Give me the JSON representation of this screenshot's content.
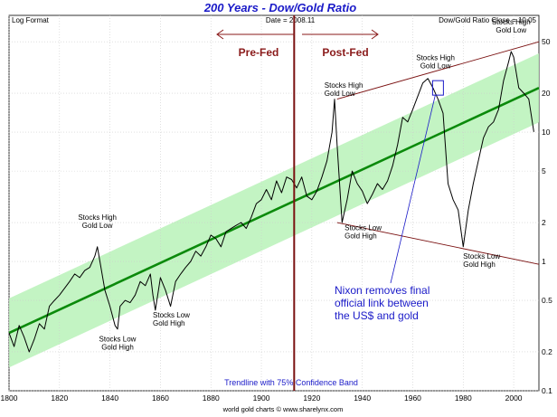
{
  "chart_data": {
    "type": "line",
    "title": "200 Years - Dow/Gold Ratio",
    "subtitle_left": "Log Format",
    "date_label": "Date = 2008.11",
    "close_label": "Dow/Gold Ratio Close = 10.05",
    "y_scale": "log",
    "xlim": [
      1800,
      2010
    ],
    "ylim": [
      0.1,
      80
    ],
    "x_ticks": [
      "1800",
      "1820",
      "1840",
      "1860",
      "1880",
      "1900",
      "1920",
      "1940",
      "1960",
      "1980",
      "2000"
    ],
    "x_tick_values": [
      1800,
      1820,
      1840,
      1860,
      1880,
      1900,
      1920,
      1940,
      1960,
      1980,
      2000
    ],
    "y_ticks": [
      "50",
      "20",
      "10",
      "5",
      "2",
      "1",
      "0.5",
      "0.2",
      "0.1"
    ],
    "y_tick_values": [
      50,
      20,
      10,
      5,
      2,
      1,
      0.5,
      0.2,
      0.1
    ],
    "grid": true,
    "series": [
      {
        "x": [
          1800,
          1802,
          1804,
          1806,
          1808,
          1810,
          1812,
          1814,
          1816,
          1818,
          1820,
          1822,
          1824,
          1826,
          1828,
          1830,
          1832,
          1834,
          1835,
          1836,
          1838,
          1840,
          1842,
          1843,
          1844,
          1846,
          1848,
          1850,
          1852,
          1854,
          1856,
          1857,
          1858,
          1860,
          1862,
          1864,
          1866,
          1868,
          1870,
          1872,
          1874,
          1876,
          1878,
          1880,
          1882,
          1884,
          1886,
          1888,
          1890,
          1892,
          1894,
          1896,
          1898,
          1900,
          1902,
          1904,
          1906,
          1908,
          1910,
          1912,
          1914,
          1916,
          1918,
          1920,
          1922,
          1924,
          1926,
          1928,
          1929,
          1930,
          1932,
          1934,
          1936,
          1938,
          1940,
          1942,
          1944,
          1946,
          1948,
          1950,
          1952,
          1954,
          1956,
          1958,
          1960,
          1962,
          1964,
          1966,
          1968,
          1970,
          1972,
          1974,
          1976,
          1978,
          1980,
          1982,
          1984,
          1986,
          1988,
          1990,
          1992,
          1994,
          1996,
          1998,
          1999,
          2000,
          2002,
          2004,
          2006,
          2008
        ],
        "y": [
          0.28,
          0.22,
          0.32,
          0.26,
          0.2,
          0.25,
          0.33,
          0.3,
          0.45,
          0.5,
          0.55,
          0.62,
          0.7,
          0.8,
          0.75,
          0.85,
          0.9,
          1.1,
          1.3,
          1.0,
          0.6,
          0.45,
          0.32,
          0.3,
          0.45,
          0.5,
          0.48,
          0.55,
          0.7,
          0.65,
          0.8,
          0.55,
          0.42,
          0.75,
          0.6,
          0.45,
          0.7,
          0.8,
          0.9,
          1.0,
          1.2,
          1.1,
          1.3,
          1.6,
          1.5,
          1.3,
          1.7,
          1.8,
          1.9,
          2.0,
          1.8,
          2.2,
          2.8,
          3.0,
          3.6,
          3.0,
          4.2,
          3.4,
          4.5,
          4.3,
          3.7,
          4.5,
          3.2,
          3.0,
          3.5,
          4.5,
          6.0,
          10.0,
          18.0,
          8.0,
          2.0,
          3.0,
          5.0,
          4.0,
          3.5,
          2.8,
          3.3,
          4.0,
          3.6,
          4.2,
          5.5,
          8.0,
          13.0,
          12.0,
          15.0,
          19.0,
          24.0,
          26.0,
          22.0,
          18.0,
          14.0,
          4.0,
          3.0,
          2.5,
          1.3,
          2.5,
          4.0,
          6.0,
          9.0,
          11.0,
          12.0,
          15.0,
          25.0,
          35.0,
          42.0,
          38.0,
          22.0,
          20.0,
          18.0,
          10.05
        ]
      }
    ],
    "trendline": {
      "label": "Trendline with 75% Confidence Band",
      "x": [
        1800,
        2010
      ],
      "y": [
        0.28,
        22.0
      ],
      "band_factor": 1.85
    },
    "channel_lines": [
      {
        "x": [
          1930,
          2010
        ],
        "y": [
          18.0,
          50.0
        ]
      },
      {
        "x": [
          1930,
          2010
        ],
        "y": [
          2.0,
          0.95
        ]
      }
    ],
    "vline": {
      "x": 1913
    },
    "annotations": [
      {
        "lines": [
          "Stocks High",
          "Gold Low"
        ],
        "x": 1835,
        "y": 2.1,
        "anchor": "middle"
      },
      {
        "lines": [
          "Stocks Low",
          "Gold High"
        ],
        "x": 1843,
        "y": 0.24,
        "anchor": "middle"
      },
      {
        "lines": [
          "Stocks Low",
          "Gold High"
        ],
        "x": 1857,
        "y": 0.37,
        "anchor": "start"
      },
      {
        "lines": [
          "Stocks High",
          "Gold Low"
        ],
        "x": 1925,
        "y": 22.0,
        "anchor": "start"
      },
      {
        "lines": [
          "Stocks Low",
          "Gold High"
        ],
        "x": 1933,
        "y": 1.75,
        "anchor": "start"
      },
      {
        "lines": [
          "Stocks High",
          "Gold Low"
        ],
        "x": 1969,
        "y": 36.0,
        "anchor": "middle"
      },
      {
        "lines": [
          "Stocks Low",
          "Gold High"
        ],
        "x": 1980,
        "y": 1.05,
        "anchor": "start"
      },
      {
        "lines": [
          "Stocks High",
          "Gold Low"
        ],
        "x": 1999,
        "y": 68.0,
        "anchor": "middle"
      }
    ],
    "fed_labels": {
      "pre": "Pre-Fed",
      "post": "Post-Fed"
    },
    "nixon_note": {
      "lines": [
        "Nixon removes final",
        "official link between",
        "the US$ and gold"
      ],
      "x": 1970,
      "y": 22.0
    },
    "footer": "world gold charts © www.sharelynx.com",
    "colors": {
      "price": "#000000",
      "trend": "#0b8a0b",
      "band": "#b8f2b8",
      "vline": "#7a1010",
      "channel": "#7a1010",
      "nixon": "#1a1ac8",
      "grid": "#cccccc"
    }
  }
}
